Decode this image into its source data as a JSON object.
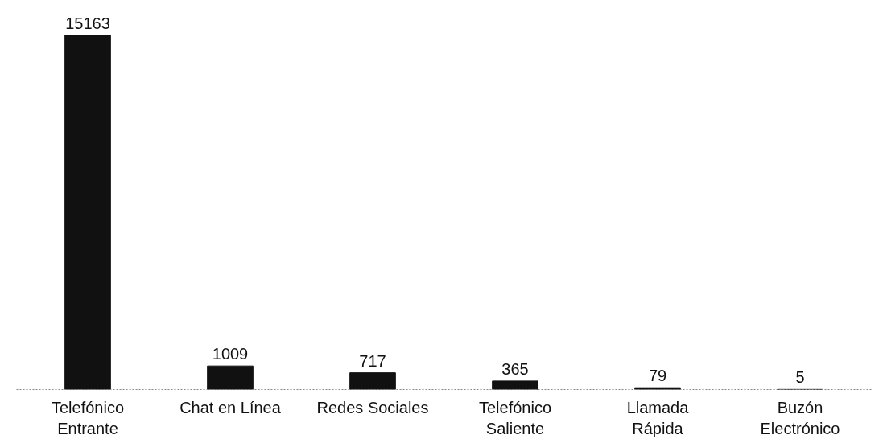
{
  "chart_data": {
    "type": "bar",
    "categories": [
      "Telefónico\nEntrante",
      "Chat en Línea",
      "Redes Sociales",
      "Telefónico\nSaliente",
      "Llamada\nRápida",
      "Buzón\nElectrónico"
    ],
    "values": [
      15163,
      1009,
      717,
      365,
      79,
      5
    ],
    "color": "#111111",
    "data_labels": true
  }
}
